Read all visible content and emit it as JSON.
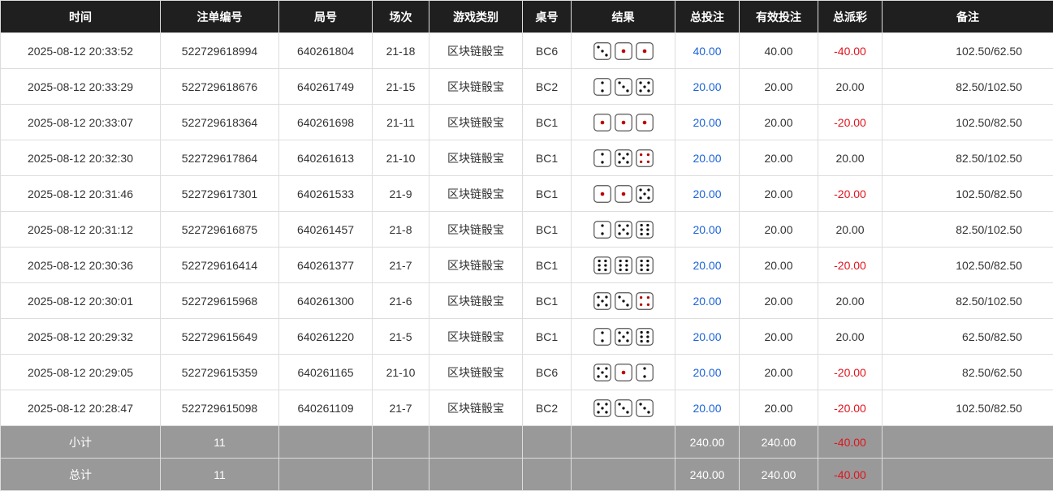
{
  "headers": [
    "时间",
    "注单编号",
    "局号",
    "场次",
    "游戏类别",
    "桌号",
    "结果",
    "总投注",
    "有效投注",
    "总派彩",
    "备注"
  ],
  "colors": {
    "header_bg": "#1f1f1f",
    "footer_bg": "#999999",
    "bet_blue": "#1a62d8",
    "loss_red": "#e0141e"
  },
  "rows": [
    [
      "2025-08-12 20:33:52",
      "522729618994",
      "640261804",
      "21-18",
      "区块链骰宝",
      "BC6",
      [
        3,
        1,
        1
      ],
      "40.00",
      "40.00",
      "-40.00",
      "102.50/62.50"
    ],
    [
      "2025-08-12 20:33:29",
      "522729618676",
      "640261749",
      "21-15",
      "区块链骰宝",
      "BC2",
      [
        2,
        3,
        5
      ],
      "20.00",
      "20.00",
      "20.00",
      "82.50/102.50"
    ],
    [
      "2025-08-12 20:33:07",
      "522729618364",
      "640261698",
      "21-11",
      "区块链骰宝",
      "BC1",
      [
        1,
        1,
        1
      ],
      "20.00",
      "20.00",
      "-20.00",
      "102.50/82.50"
    ],
    [
      "2025-08-12 20:32:30",
      "522729617864",
      "640261613",
      "21-10",
      "区块链骰宝",
      "BC1",
      [
        2,
        5,
        4
      ],
      "20.00",
      "20.00",
      "20.00",
      "82.50/102.50"
    ],
    [
      "2025-08-12 20:31:46",
      "522729617301",
      "640261533",
      "21-9",
      "区块链骰宝",
      "BC1",
      [
        1,
        1,
        5
      ],
      "20.00",
      "20.00",
      "-20.00",
      "102.50/82.50"
    ],
    [
      "2025-08-12 20:31:12",
      "522729616875",
      "640261457",
      "21-8",
      "区块链骰宝",
      "BC1",
      [
        2,
        5,
        6
      ],
      "20.00",
      "20.00",
      "20.00",
      "82.50/102.50"
    ],
    [
      "2025-08-12 20:30:36",
      "522729616414",
      "640261377",
      "21-7",
      "区块链骰宝",
      "BC1",
      [
        6,
        6,
        6
      ],
      "20.00",
      "20.00",
      "-20.00",
      "102.50/82.50"
    ],
    [
      "2025-08-12 20:30:01",
      "522729615968",
      "640261300",
      "21-6",
      "区块链骰宝",
      "BC1",
      [
        5,
        3,
        4
      ],
      "20.00",
      "20.00",
      "20.00",
      "82.50/102.50"
    ],
    [
      "2025-08-12 20:29:32",
      "522729615649",
      "640261220",
      "21-5",
      "区块链骰宝",
      "BC1",
      [
        2,
        5,
        6
      ],
      "20.00",
      "20.00",
      "20.00",
      "62.50/82.50"
    ],
    [
      "2025-08-12 20:29:05",
      "522729615359",
      "640261165",
      "21-10",
      "区块链骰宝",
      "BC6",
      [
        5,
        1,
        2
      ],
      "20.00",
      "20.00",
      "-20.00",
      "82.50/62.50"
    ],
    [
      "2025-08-12 20:28:47",
      "522729615098",
      "640261109",
      "21-7",
      "区块链骰宝",
      "BC2",
      [
        5,
        3,
        3
      ],
      "20.00",
      "20.00",
      "-20.00",
      "102.50/82.50"
    ]
  ],
  "subtotal": {
    "label": "小计",
    "count": "11",
    "bet": "240.00",
    "valid": "240.00",
    "payout": "-40.00"
  },
  "total": {
    "label": "总计",
    "count": "11",
    "bet": "240.00",
    "valid": "240.00",
    "payout": "-40.00"
  }
}
